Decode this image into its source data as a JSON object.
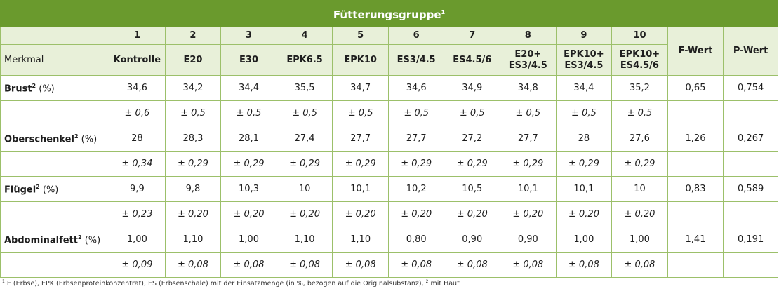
{
  "title": "Fütterungsgruppe",
  "title_sup": "1",
  "header": {
    "group_numbers": [
      "1",
      "2",
      "3",
      "4",
      "5",
      "6",
      "7",
      "8",
      "9",
      "10"
    ],
    "merkmal_label": "Merkmal",
    "group_names": [
      "Kontrolle",
      "E20",
      "E30",
      "EPK6.5",
      "EPK10",
      "ES3/4.5",
      "ES4.5/6",
      "E20+\nES3/4.5",
      "EPK10+\nES3/4.5",
      "EPK10+\nES4.5/6"
    ],
    "f_wert": "F-Wert",
    "p_wert": "P-Wert"
  },
  "rows": [
    {
      "label": "Brust",
      "sup": "2",
      "unit": " (%)",
      "means": [
        "34,6",
        "34,2",
        "34,4",
        "35,5",
        "34,7",
        "34,6",
        "34,9",
        "34,8",
        "34,4",
        "35,2"
      ],
      "sds": [
        "± 0,6",
        "± 0,5",
        "± 0,5",
        "± 0,5",
        "± 0,5",
        "± 0,5",
        "± 0,5",
        "± 0,5",
        "± 0,5",
        "± 0,5"
      ],
      "f": "0,65",
      "p": "0,754"
    },
    {
      "label": "Oberschenkel",
      "sup": "2",
      "unit": " (%)",
      "means": [
        "28",
        "28,3",
        "28,1",
        "27,4",
        "27,7",
        "27,7",
        "27,2",
        "27,7",
        "28",
        "27,6"
      ],
      "sds": [
        "± 0,34",
        "± 0,29",
        "± 0,29",
        "± 0,29",
        "± 0,29",
        "± 0,29",
        "± 0,29",
        "± 0,29",
        "± 0,29",
        "± 0,29"
      ],
      "f": "1,26",
      "p": "0,267"
    },
    {
      "label": "Flügel",
      "sup": "2",
      "unit": " (%)",
      "means": [
        "9,9",
        "9,8",
        "10,3",
        "10",
        "10,1",
        "10,2",
        "10,5",
        "10,1",
        "10,1",
        "10"
      ],
      "sds": [
        "± 0,23",
        "± 0,20",
        "± 0,20",
        "± 0,20",
        "± 0,20",
        "± 0,20",
        "± 0,20",
        "± 0,20",
        "± 0,20",
        "± 0,20"
      ],
      "f": "0,83",
      "p": "0,589"
    },
    {
      "label": "Abdominalfett",
      "sup": "2",
      "unit": " (%)",
      "means": [
        "1,00",
        "1,10",
        "1,00",
        "1,10",
        "1,10",
        "0,80",
        "0,90",
        "0,90",
        "1,00",
        "1,00"
      ],
      "sds": [
        "± 0,09",
        "± 0,08",
        "± 0,08",
        "± 0,08",
        "± 0,08",
        "± 0,08",
        "± 0,08",
        "± 0,08",
        "± 0,08",
        "± 0,08"
      ],
      "f": "1,41",
      "p": "0,191"
    }
  ],
  "footnote": {
    "sup1": "1",
    "text1": " E (Erbse), EPK (Erbsenproteinkonzentrat), ES (Erbsenschale) mit der Einsatzmenge (in %, bezogen auf die Originalsubstanz), ",
    "sup2": "2",
    "text2": " mit Haut"
  },
  "colors": {
    "title_bg": "#6a9a2d",
    "header_bg": "#e8f0d9",
    "border": "#9cc06a"
  }
}
